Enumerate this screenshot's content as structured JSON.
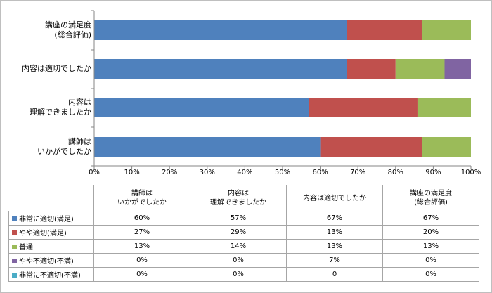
{
  "chart_data": {
    "type": "bar",
    "orientation": "horizontal",
    "stacked": true,
    "title": "",
    "xlabel": "",
    "ylabel": "",
    "xlim": [
      0,
      100
    ],
    "x_ticks": [
      "0%",
      "10%",
      "20%",
      "30%",
      "40%",
      "50%",
      "60%",
      "70%",
      "80%",
      "90%",
      "100%"
    ],
    "grid": false,
    "legend": "data-table",
    "categories_top_to_bottom": [
      "講座の満足度\n(総合評価)",
      "内容は適切でしたか",
      "内容は\n理解できましたか",
      "講師は\nいかがでしたか"
    ],
    "table_columns": [
      "講師は\nいかがでしたか",
      "内容は\n理解できましたか",
      "内容は適切でしたか",
      "講座の満足度\n(総合評価)"
    ],
    "series": [
      {
        "name": "非常に適切(満足)",
        "color": "#4f81bd",
        "values": [
          60,
          57,
          67,
          67
        ],
        "labels": [
          "60%",
          "57%",
          "67%",
          "67%"
        ]
      },
      {
        "name": "やや適切(満足)",
        "color": "#c0504d",
        "values": [
          27,
          29,
          13,
          20
        ],
        "labels": [
          "27%",
          "29%",
          "13%",
          "20%"
        ]
      },
      {
        "name": "普通",
        "color": "#9bbb59",
        "values": [
          13,
          14,
          13,
          13
        ],
        "labels": [
          "13%",
          "14%",
          "13%",
          "13%"
        ]
      },
      {
        "name": "やや不適切(不満)",
        "color": "#8064a2",
        "values": [
          0,
          0,
          7,
          0
        ],
        "labels": [
          "0%",
          "0%",
          "7%",
          "0%"
        ]
      },
      {
        "name": "非常に不適切(不満)",
        "color": "#4bacc6",
        "values": [
          0,
          0,
          0,
          0
        ],
        "labels": [
          "0%",
          "0%",
          "0",
          "0%"
        ]
      }
    ]
  }
}
